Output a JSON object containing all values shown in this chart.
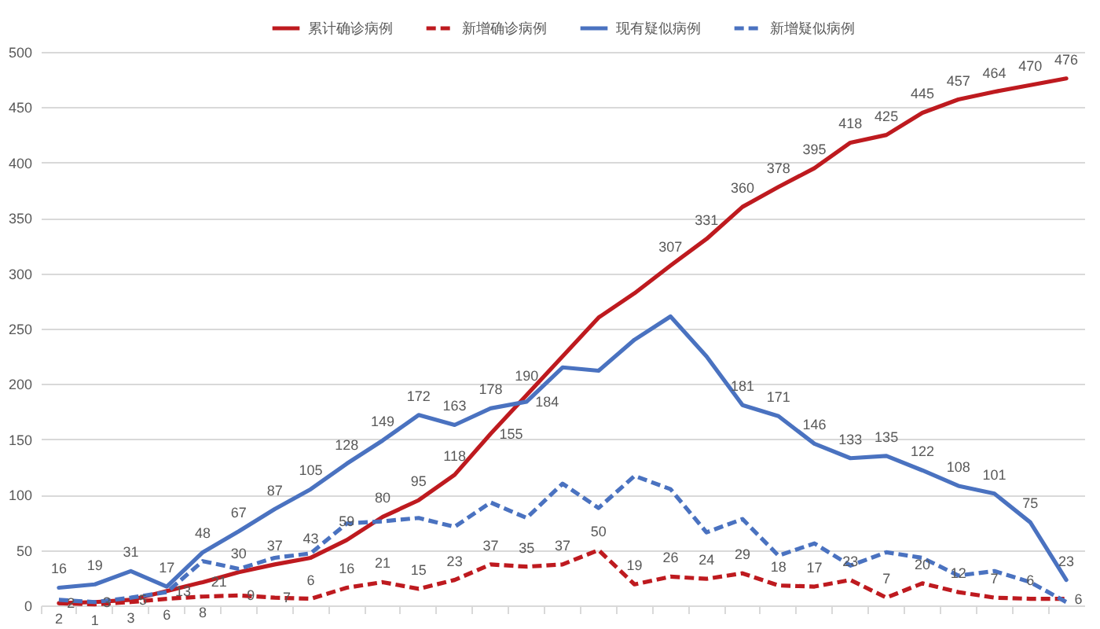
{
  "chart_data": {
    "type": "line",
    "categories": [
      null,
      null,
      null,
      null,
      null,
      null,
      null,
      null,
      null,
      null,
      null,
      null,
      null,
      null,
      null,
      null,
      null,
      null,
      null,
      null,
      null,
      null,
      null,
      null,
      null,
      null,
      null,
      null,
      null
    ],
    "series": [
      {
        "name": "累计确诊病例",
        "color": "#be1a1f",
        "line_style": "solid",
        "values": [
          2,
          3,
          5,
          13,
          21,
          30,
          37,
          43,
          59,
          80,
          95,
          118,
          155,
          190,
          225,
          260,
          282,
          307,
          331,
          360,
          378,
          395,
          418,
          425,
          445,
          457,
          464,
          470,
          476
        ],
        "value_labels": [
          "2",
          "3",
          "5",
          "13",
          "21",
          "30",
          "37",
          "43",
          "59",
          "80",
          "95",
          "118",
          "155",
          "190",
          null,
          null,
          null,
          "307",
          "331",
          "360",
          "378",
          "395",
          "418",
          "425",
          "445",
          "457",
          "464",
          "470",
          "476"
        ]
      },
      {
        "name": "新增确诊病例",
        "color": "#be1a1f",
        "line_style": "dashed",
        "values": [
          2,
          1,
          3,
          6,
          8,
          9,
          7,
          6,
          16,
          21,
          15,
          23,
          37,
          35,
          37,
          50,
          19,
          26,
          24,
          29,
          18,
          17,
          23,
          7,
          20,
          12,
          7,
          6,
          6
        ],
        "value_labels": [
          "2",
          "1",
          "3",
          "6",
          "8",
          "9",
          "7",
          "6",
          "16",
          "21",
          "15",
          "23",
          "37",
          "35",
          "37",
          "50",
          "19",
          "26",
          "24",
          "29",
          "18",
          "17",
          "23",
          "7",
          "20",
          "12",
          "7",
          "6",
          "6"
        ]
      },
      {
        "name": "现有疑似病例",
        "color": "#4a72c0",
        "line_style": "solid",
        "values": [
          16,
          19,
          31,
          17,
          48,
          67,
          87,
          105,
          128,
          149,
          172,
          163,
          178,
          184,
          215,
          212,
          240,
          261,
          225,
          181,
          171,
          146,
          133,
          135,
          122,
          108,
          101,
          75,
          23
        ],
        "value_labels": [
          "16",
          "19",
          "31",
          "17",
          "48",
          "67",
          "87",
          "105",
          "128",
          "149",
          "172",
          "163",
          "178",
          "184",
          null,
          null,
          null,
          null,
          null,
          "181",
          "171",
          "146",
          "133",
          "135",
          "122",
          "108",
          "101",
          "75",
          "23"
        ]
      },
      {
        "name": "新增疑似病例",
        "color": "#4a72c0",
        "line_style": "dashed",
        "values": [
          5,
          3,
          7,
          12,
          40,
          33,
          43,
          47,
          74,
          76,
          79,
          71,
          93,
          79,
          110,
          88,
          117,
          105,
          66,
          78,
          45,
          56,
          36,
          48,
          43,
          27,
          31,
          21,
          3
        ]
      }
    ],
    "ylim": [
      0,
      500
    ],
    "yticks": [
      0,
      50,
      100,
      150,
      200,
      250,
      300,
      350,
      400,
      450,
      500
    ],
    "grid": "y",
    "legend": "top",
    "tick_labels": "y"
  }
}
